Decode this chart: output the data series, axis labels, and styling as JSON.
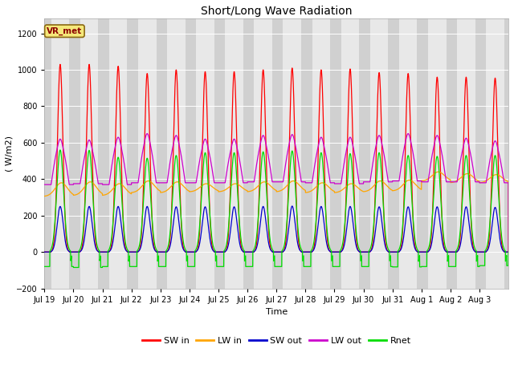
{
  "title": "Short/Long Wave Radiation",
  "xlabel": "Time",
  "ylabel": "( W/m2)",
  "ylim": [
    -200,
    1280
  ],
  "yticks": [
    -200,
    0,
    200,
    400,
    600,
    800,
    1000,
    1200
  ],
  "plot_bg_light": "#e8e8e8",
  "plot_bg_dark": "#d0d0d0",
  "fig_color": "#ffffff",
  "label_box": "VR_met",
  "legend": [
    "SW in",
    "LW in",
    "SW out",
    "LW out",
    "Rnet"
  ],
  "colors": [
    "#ff0000",
    "#ffa500",
    "#0000cd",
    "#cc00cc",
    "#00dd00"
  ],
  "n_days": 16,
  "SW_in_peaks": [
    1030,
    1030,
    1020,
    980,
    1000,
    990,
    990,
    1000,
    1010,
    1000,
    1005,
    985,
    980,
    960,
    960,
    955
  ],
  "LW_in_night": [
    305,
    310,
    310,
    325,
    325,
    330,
    330,
    330,
    330,
    325,
    325,
    330,
    335,
    390,
    380,
    380
  ],
  "LW_in_day": [
    380,
    385,
    375,
    390,
    385,
    375,
    375,
    385,
    390,
    380,
    375,
    390,
    395,
    440,
    430,
    425
  ],
  "LW_out_night": [
    370,
    375,
    370,
    380,
    380,
    380,
    380,
    385,
    385,
    380,
    375,
    385,
    390,
    385,
    385,
    380
  ],
  "LW_out_peak": [
    590,
    585,
    600,
    620,
    610,
    590,
    590,
    610,
    615,
    600,
    600,
    610,
    620,
    610,
    595,
    580
  ],
  "SW_out_peaks": [
    250,
    250,
    250,
    250,
    248,
    248,
    248,
    250,
    252,
    250,
    250,
    248,
    248,
    248,
    248,
    245
  ],
  "Rnet_night": [
    -80,
    -85,
    -80,
    -80,
    -80,
    -80,
    -80,
    -80,
    -80,
    -80,
    -80,
    -80,
    -82,
    -80,
    -80,
    -75
  ],
  "Rnet_peak": [
    560,
    558,
    520,
    515,
    530,
    545,
    545,
    550,
    555,
    545,
    540,
    545,
    530,
    525,
    530,
    530
  ],
  "x_tick_labels": [
    "Jul 19",
    "Jul 20",
    "Jul 21",
    "Jul 22",
    "Jul 23",
    "Jul 24",
    "Jul 25",
    "Jul 26",
    "Jul 27",
    "Jul 28",
    "Jul 29",
    "Jul 30",
    "Jul 31",
    "Aug 1",
    "Aug 2",
    "Aug 3"
  ],
  "sunrise": 5.5,
  "sunset": 20.5
}
